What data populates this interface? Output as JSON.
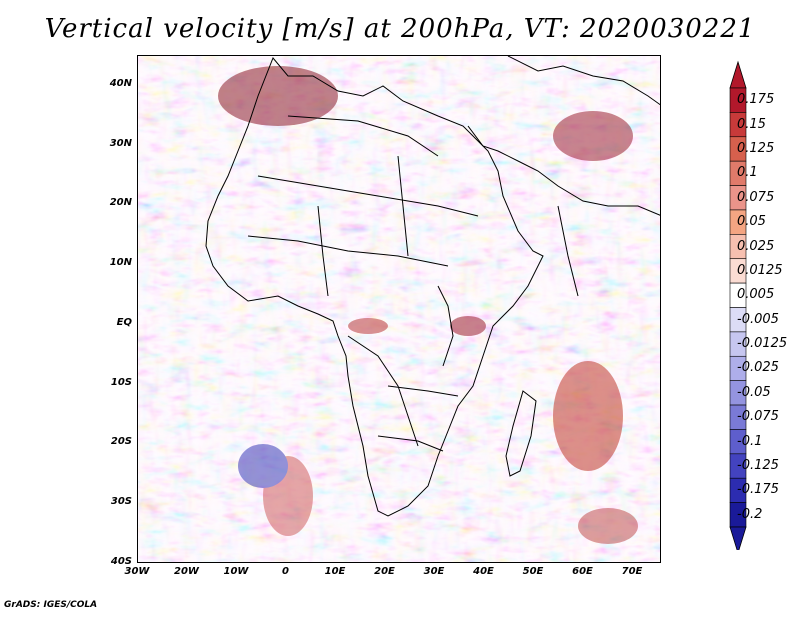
{
  "title": "Vertical velocity [m/s] at 200hPa, VT: 2020030221",
  "credit": "GrADS: IGES/COLA",
  "map": {
    "lat_labels": [
      "40N",
      "30N",
      "20N",
      "10N",
      "EQ",
      "10S",
      "20S",
      "30S",
      "40S"
    ],
    "lon_labels": [
      "30W",
      "20W",
      "10W",
      "0",
      "10E",
      "20E",
      "30E",
      "40E",
      "50E",
      "60E",
      "70E"
    ]
  },
  "colorbar": {
    "labels": [
      "0.175",
      "0.15",
      "0.125",
      "0.1",
      "0.075",
      "0.05",
      "0.025",
      "0.0125",
      "0.005",
      "-0.005",
      "-0.0125",
      "-0.025",
      "-0.05",
      "-0.075",
      "-0.1",
      "-0.125",
      "-0.175",
      "-0.2"
    ],
    "colors": [
      "#b2182b",
      "#c83a3a",
      "#d6604d",
      "#e07a6a",
      "#ea948a",
      "#f4a582",
      "#f7c0b0",
      "#fbdcd3",
      "#ffffff",
      "#dcdcf6",
      "#c6c6f0",
      "#aeaeea",
      "#9494e0",
      "#7a7ad6",
      "#5e5ecc",
      "#4343bf",
      "#2c2cb0",
      "#1a1a99"
    ]
  }
}
